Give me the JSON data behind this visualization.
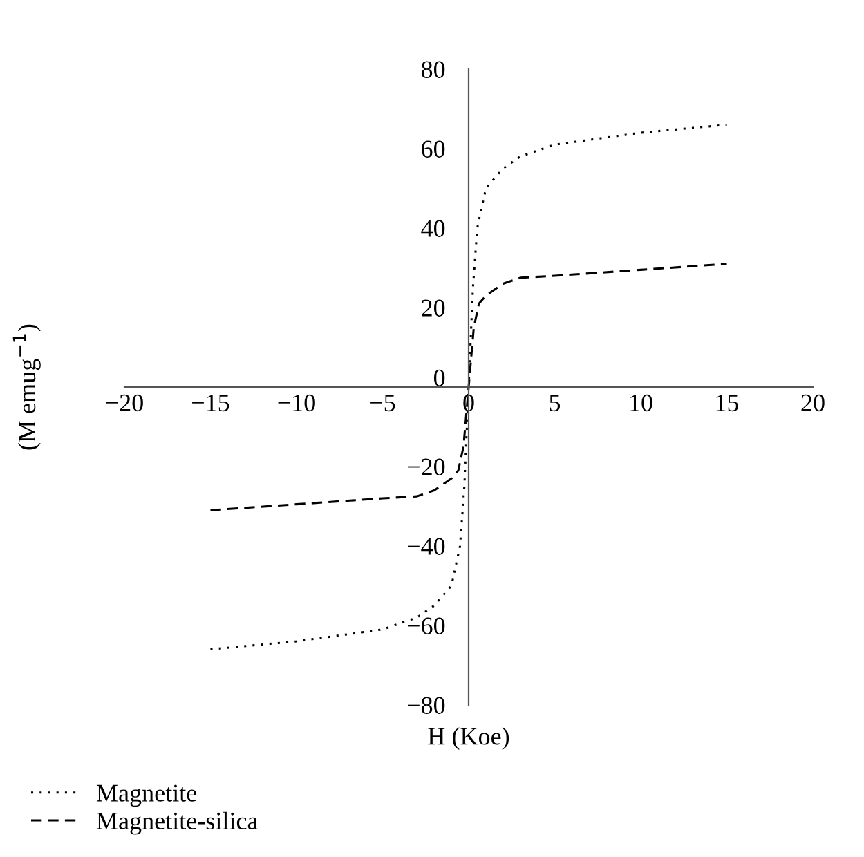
{
  "chart_data": {
    "type": "line",
    "xlabel": "H (Koe)",
    "ylabel": "(M emug$^{−1}$)",
    "xlim": [
      -20,
      20
    ],
    "ylim": [
      -80,
      80
    ],
    "xticks": [
      -20,
      -15,
      -10,
      -5,
      0,
      5,
      10,
      15,
      20
    ],
    "yticks": [
      -80,
      -60,
      -40,
      -20,
      0,
      20,
      40,
      60,
      80
    ],
    "grid": false,
    "legend": "bottom left",
    "series": [
      {
        "name": "Magnetite",
        "color": "#000000",
        "line_style": "dotted",
        "x": [
          -15,
          -10,
          -5,
          -3,
          -2,
          -1,
          -0.5,
          -0.25,
          0,
          0.25,
          0.5,
          1,
          2,
          3,
          5,
          10,
          15
        ],
        "values": [
          -66,
          -64,
          -61,
          -58,
          -55,
          -50,
          -40,
          -25,
          0,
          25,
          40,
          50,
          55,
          58,
          61,
          64,
          66
        ]
      },
      {
        "name": "Magnetite-silica",
        "color": "#000000",
        "line_style": "dashed",
        "x": [
          -15,
          -10,
          -5,
          -3,
          -2,
          -1,
          -0.6,
          -0.3,
          0,
          0.3,
          0.6,
          1,
          2,
          3,
          5,
          10,
          15
        ],
        "values": [
          -31,
          -29.5,
          -28,
          -27.5,
          -26,
          -23,
          -21,
          -15,
          0,
          15,
          21,
          23,
          26,
          27.5,
          28,
          29.5,
          31
        ]
      }
    ]
  }
}
